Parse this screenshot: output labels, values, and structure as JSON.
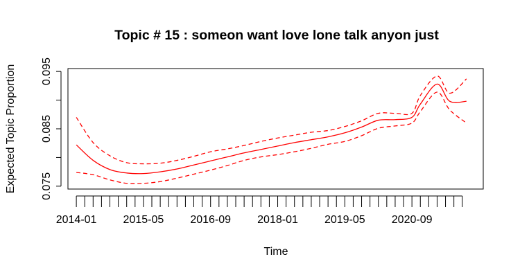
{
  "chart_data": {
    "type": "line",
    "title": "Topic # 15 :  someon want love lone talk anyon just",
    "xlabel": "Time",
    "ylabel": "Expected Topic Proportion",
    "xlim": [
      "2013-11",
      "2022-02"
    ],
    "ylim": [
      0.0745,
      0.0955
    ],
    "x_ticks": [
      "2014-01",
      "2015-05",
      "2016-09",
      "2018-01",
      "2019-05",
      "2020-09"
    ],
    "y_ticks": [
      0.075,
      0.08,
      0.085,
      0.09,
      0.095
    ],
    "y_tick_labels": [
      "0.075",
      "",
      "0.085",
      "",
      "0.095"
    ],
    "minor_ticks": "monthly-quarters",
    "line_color": "#ff0000",
    "grid": false,
    "series": [
      {
        "style": "solid",
        "x": [
          "2014-01",
          "2014-05",
          "2014-09",
          "2015-01",
          "2015-05",
          "2015-09",
          "2016-01",
          "2016-05",
          "2016-09",
          "2017-01",
          "2017-05",
          "2017-09",
          "2018-01",
          "2018-05",
          "2018-09",
          "2019-01",
          "2019-05",
          "2019-09",
          "2020-01",
          "2020-05",
          "2020-09",
          "2020-11",
          "2021-03",
          "2021-06",
          "2021-10"
        ],
        "values": [
          0.0822,
          0.0795,
          0.0779,
          0.0773,
          0.0772,
          0.0775,
          0.078,
          0.0787,
          0.0794,
          0.0801,
          0.0808,
          0.0814,
          0.082,
          0.0826,
          0.0831,
          0.0836,
          0.0843,
          0.0853,
          0.0865,
          0.0866,
          0.087,
          0.0893,
          0.0928,
          0.0898,
          0.0898
        ]
      },
      {
        "style": "dashed",
        "x": [
          "2014-01",
          "2014-05",
          "2014-09",
          "2015-01",
          "2015-05",
          "2015-09",
          "2016-01",
          "2016-05",
          "2016-09",
          "2017-01",
          "2017-05",
          "2017-09",
          "2018-01",
          "2018-05",
          "2018-09",
          "2019-01",
          "2019-05",
          "2019-09",
          "2020-01",
          "2020-05",
          "2020-09",
          "2020-11",
          "2021-03",
          "2021-06",
          "2021-10"
        ],
        "values": [
          0.087,
          0.0826,
          0.0803,
          0.0791,
          0.0789,
          0.079,
          0.0795,
          0.0802,
          0.081,
          0.0815,
          0.0821,
          0.0828,
          0.0834,
          0.0839,
          0.0844,
          0.0847,
          0.0854,
          0.0864,
          0.0877,
          0.0877,
          0.0877,
          0.0908,
          0.0942,
          0.0912,
          0.0937
        ]
      },
      {
        "style": "dashed",
        "x": [
          "2014-01",
          "2014-05",
          "2014-09",
          "2015-01",
          "2015-05",
          "2015-09",
          "2016-01",
          "2016-05",
          "2016-09",
          "2017-01",
          "2017-05",
          "2017-09",
          "2018-01",
          "2018-05",
          "2018-09",
          "2019-01",
          "2019-05",
          "2019-09",
          "2020-01",
          "2020-05",
          "2020-09",
          "2020-11",
          "2021-03",
          "2021-06",
          "2021-10"
        ],
        "values": [
          0.0774,
          0.077,
          0.0761,
          0.0755,
          0.0755,
          0.0758,
          0.0764,
          0.0771,
          0.0778,
          0.0786,
          0.0795,
          0.0801,
          0.0805,
          0.081,
          0.0816,
          0.0823,
          0.0828,
          0.0838,
          0.0851,
          0.0855,
          0.086,
          0.088,
          0.0914,
          0.0883,
          0.086
        ]
      }
    ]
  }
}
